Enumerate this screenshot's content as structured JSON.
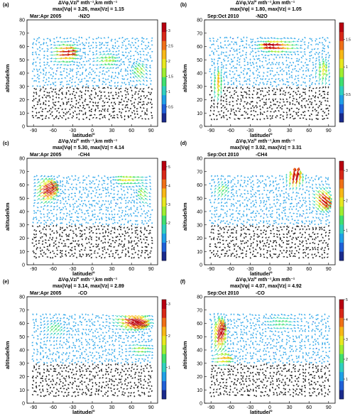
{
  "figure": {
    "panel_count": 6
  },
  "colormap": [
    "#1a2a8c",
    "#2060d8",
    "#20a0e8",
    "#30d0c0",
    "#40e070",
    "#a0ee30",
    "#e8e820",
    "#f8b818",
    "#f07018",
    "#d82818",
    "#b80010"
  ],
  "chart_data": [
    {
      "type": "quiver",
      "panel_letter": "(a)",
      "title_line1": "ΔVφ,Vz/° mth⁻¹,km mth⁻¹",
      "title_line2": "max|Vφ| = 3.26, max|Vz| = 1.15",
      "period": "Mar:Apr 2005",
      "species": "-N2O",
      "xlabel": "latitude/°",
      "ylabel": "altitude/km",
      "xlim": [
        -100,
        100
      ],
      "ylim": [
        0,
        80
      ],
      "xticks": [
        -90,
        -60,
        -30,
        0,
        30,
        60,
        90
      ],
      "yticks": [
        0,
        10,
        20,
        30,
        40,
        50,
        60,
        70,
        80
      ],
      "colorbar_range": [
        0,
        3.26
      ],
      "colorbar_ticks": [
        0.5,
        1.0,
        1.5,
        2.0,
        2.5,
        3.0
      ],
      "hotspots": [
        {
          "lat": -45,
          "alt": 55,
          "u": 3.0,
          "w": 0.2,
          "sigma": [
            14,
            6
          ]
        },
        {
          "lat": 20,
          "alt": 49,
          "u": 1.2,
          "w": 0.4,
          "sigma": [
            14,
            5
          ]
        },
        {
          "lat": 75,
          "alt": 40,
          "u": -0.9,
          "w": 0.9,
          "sigma": [
            10,
            6
          ]
        }
      ]
    },
    {
      "type": "quiver",
      "panel_letter": "(b)",
      "title_line1": "ΔVφ,Vz/° mth⁻¹,km mth⁻¹",
      "title_line2": "max|Vφ| = 1.80, max|Vz| = 1.05",
      "period": "Sep:Oct 2010",
      "species": "-N2O",
      "xlabel": "latitude/°",
      "ylabel": "altitude/km",
      "xlim": [
        -100,
        100
      ],
      "ylim": [
        0,
        80
      ],
      "xticks": [
        -90,
        -60,
        -30,
        0,
        30,
        60,
        90
      ],
      "yticks": [
        0,
        10,
        20,
        30,
        40,
        50,
        60,
        70,
        80
      ],
      "colorbar_range": [
        0,
        1.8
      ],
      "colorbar_ticks": [
        0.5,
        1.0,
        1.5
      ],
      "hotspots": [
        {
          "lat": 15,
          "alt": 60,
          "u": -1.7,
          "w": 0.1,
          "sigma": [
            22,
            4
          ]
        },
        {
          "lat": -80,
          "alt": 30,
          "u": 0.2,
          "w": 1.0,
          "sigma": [
            6,
            10
          ]
        },
        {
          "lat": 80,
          "alt": 40,
          "u": 0.3,
          "w": 0.8,
          "sigma": [
            8,
            8
          ]
        }
      ]
    },
    {
      "type": "quiver",
      "panel_letter": "(c)",
      "title_line1": "ΔVφ,Vz/° mth⁻¹,km mth⁻¹",
      "title_line2": "max|Vφ| = 5.30, max|Vz| = 4.14",
      "period": "Mar:Apr 2005",
      "species": "-CH4",
      "xlabel": "latitude/°",
      "ylabel": "altitude/km",
      "xlim": [
        -100,
        100
      ],
      "ylim": [
        0,
        80
      ],
      "xticks": [
        -90,
        -60,
        -30,
        0,
        30,
        60,
        90
      ],
      "yticks": [
        0,
        10,
        20,
        30,
        40,
        50,
        60,
        70,
        80
      ],
      "colorbar_range": [
        0,
        5.3
      ],
      "colorbar_ticks": [
        1,
        2,
        3,
        4,
        5
      ],
      "hotspots": [
        {
          "lat": -72,
          "alt": 55,
          "u": 4.8,
          "w": 2.5,
          "sigma": [
            12,
            7
          ]
        },
        {
          "lat": 60,
          "alt": 64,
          "u": -2.5,
          "w": 0.1,
          "sigma": [
            20,
            4
          ]
        },
        {
          "lat": 80,
          "alt": 52,
          "u": -1.5,
          "w": 1.0,
          "sigma": [
            8,
            6
          ]
        }
      ]
    },
    {
      "type": "quiver",
      "panel_letter": "(d)",
      "title_line1": "ΔVφ,Vz/° mth⁻¹,km mth⁻¹",
      "title_line2": "max|Vφ| = 3.02, max|Vz| = 3.31",
      "period": "Sep:Oct 2010",
      "species": "-CH4",
      "xlabel": "latitude/°",
      "ylabel": "altitude/km",
      "xlim": [
        -100,
        100
      ],
      "ylim": [
        0,
        80
      ],
      "xticks": [
        -90,
        -60,
        -30,
        0,
        30,
        60,
        90
      ],
      "yticks": [
        0,
        10,
        20,
        30,
        40,
        50,
        60,
        70,
        80
      ],
      "colorbar_range": [
        0,
        3.31
      ],
      "colorbar_ticks": [
        1,
        2,
        3
      ],
      "hotspots": [
        {
          "lat": 38,
          "alt": 63,
          "u": 0.8,
          "w": 3.2,
          "sigma": [
            10,
            5
          ]
        },
        {
          "lat": 78,
          "alt": 50,
          "u": 2.4,
          "w": -1.8,
          "sigma": [
            10,
            7
          ]
        },
        {
          "lat": -75,
          "alt": 55,
          "u": 0.6,
          "w": 0.8,
          "sigma": [
            10,
            6
          ]
        }
      ]
    },
    {
      "type": "quiver",
      "panel_letter": "(e)",
      "title_line1": "ΔVφ,Vz/° mth⁻¹,km mth⁻¹",
      "title_line2": "max|Vφ| = 3.14, max|Vz| = 2.89",
      "period": "Mar:Apr 2005",
      "species": "-CO",
      "xlabel": "latitude/°",
      "ylabel": "altitude/km",
      "xlim": [
        -100,
        100
      ],
      "ylim": [
        0,
        80
      ],
      "xticks": [
        -90,
        -60,
        -30,
        0,
        30,
        60,
        90
      ],
      "yticks": [
        0,
        10,
        20,
        30,
        40,
        50,
        60,
        70,
        80
      ],
      "colorbar_range": [
        0,
        3.14
      ],
      "colorbar_ticks": [
        1,
        2,
        3
      ],
      "hotspots": [
        {
          "lat": 60,
          "alt": 62,
          "u": 3.0,
          "w": -1.2,
          "sigma": [
            20,
            5
          ]
        },
        {
          "lat": 70,
          "alt": 40,
          "u": 1.2,
          "w": 0.1,
          "sigma": [
            14,
            4
          ]
        },
        {
          "lat": -60,
          "alt": 55,
          "u": 0.6,
          "w": 0.6,
          "sigma": [
            14,
            6
          ]
        }
      ]
    },
    {
      "type": "quiver",
      "panel_letter": "(f)",
      "title_line1": "ΔVφ,Vz/° mth⁻¹,km mth⁻¹",
      "title_line2": "max|Vφ| = 4.07, max|Vz| = 4.92",
      "period": "Sep:Oct 2010",
      "species": "-CO",
      "xlabel": "latitude/°",
      "ylabel": "altitude/km",
      "xlim": [
        -100,
        100
      ],
      "ylim": [
        0,
        80
      ],
      "xticks": [
        -90,
        -60,
        -30,
        0,
        30,
        60,
        90
      ],
      "yticks": [
        0,
        10,
        20,
        30,
        40,
        50,
        60,
        70,
        80
      ],
      "colorbar_range": [
        0,
        5.0
      ],
      "colorbar_ticks": [
        1,
        2,
        3,
        4,
        5
      ],
      "hotspots": [
        {
          "lat": -78,
          "alt": 50,
          "u": 2.0,
          "w": 4.5,
          "sigma": [
            8,
            10
          ]
        },
        {
          "lat": -75,
          "alt": 33,
          "u": 3.0,
          "w": 0.1,
          "sigma": [
            12,
            4
          ]
        },
        {
          "lat": 20,
          "alt": 60,
          "u": -1.2,
          "w": 0.4,
          "sigma": [
            20,
            5
          ]
        }
      ]
    }
  ]
}
